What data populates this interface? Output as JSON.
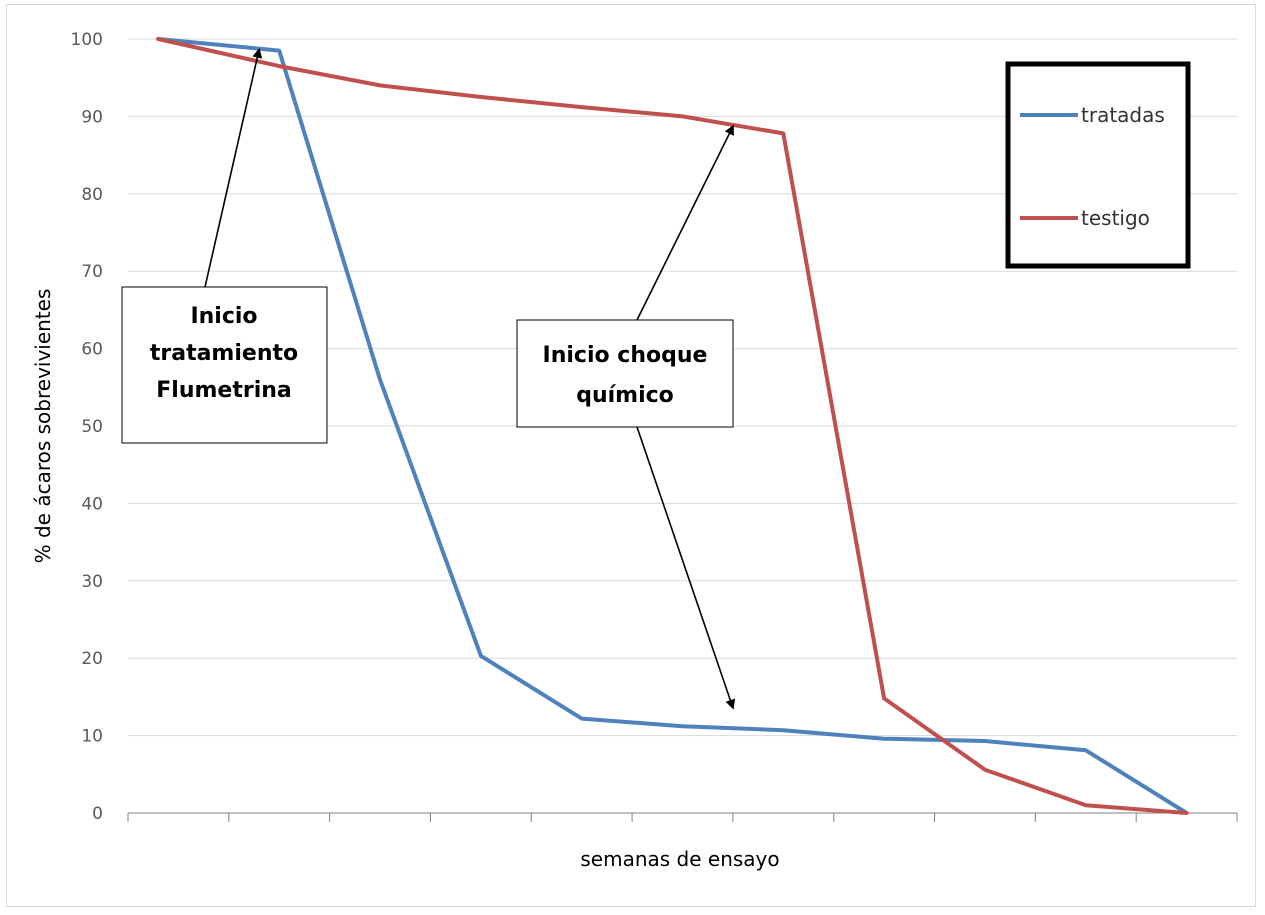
{
  "chart_data": {
    "type": "line",
    "xlabel": "semanas de ensayo",
    "ylabel": "% de ácaros sobrevivientes",
    "ylim": [
      0,
      100
    ],
    "yticks": [
      "0",
      "10",
      "20",
      "30",
      "40",
      "50",
      "60",
      "70",
      "80",
      "90",
      "100"
    ],
    "x_categories": 11,
    "grid": true,
    "legend_position": "top-right",
    "series": [
      {
        "name": "tratadas",
        "color": "#4f81bd",
        "points": [
          [
            0.3,
            100
          ],
          [
            1.5,
            98.5
          ],
          [
            2.5,
            56
          ],
          [
            3.5,
            20.3
          ],
          [
            4.5,
            12.2
          ],
          [
            5.5,
            11.2
          ],
          [
            6.5,
            10.7
          ],
          [
            7.5,
            9.6
          ],
          [
            8.5,
            9.3
          ],
          [
            9.5,
            8.1
          ],
          [
            10.5,
            0
          ]
        ]
      },
      {
        "name": "testigo",
        "color": "#c0504d",
        "points": [
          [
            0.3,
            100
          ],
          [
            1.5,
            96.5
          ],
          [
            2.5,
            94
          ],
          [
            3.5,
            92.5
          ],
          [
            4.5,
            91.2
          ],
          [
            5.5,
            90
          ],
          [
            6.5,
            87.8
          ],
          [
            7.5,
            14.8
          ],
          [
            8.5,
            5.6
          ],
          [
            9.5,
            1
          ],
          [
            10.5,
            0
          ]
        ]
      }
    ],
    "annotations": [
      {
        "text_lines": [
          "Inicio",
          "tratamiento",
          "Flumetrina"
        ],
        "arrow_targets": [
          [
            1.3,
            98.6
          ]
        ]
      },
      {
        "text_lines": [
          "Inicio choque",
          "químico"
        ],
        "arrow_targets": [
          [
            6.0,
            88.7
          ],
          [
            6.0,
            13.6
          ]
        ]
      }
    ]
  }
}
